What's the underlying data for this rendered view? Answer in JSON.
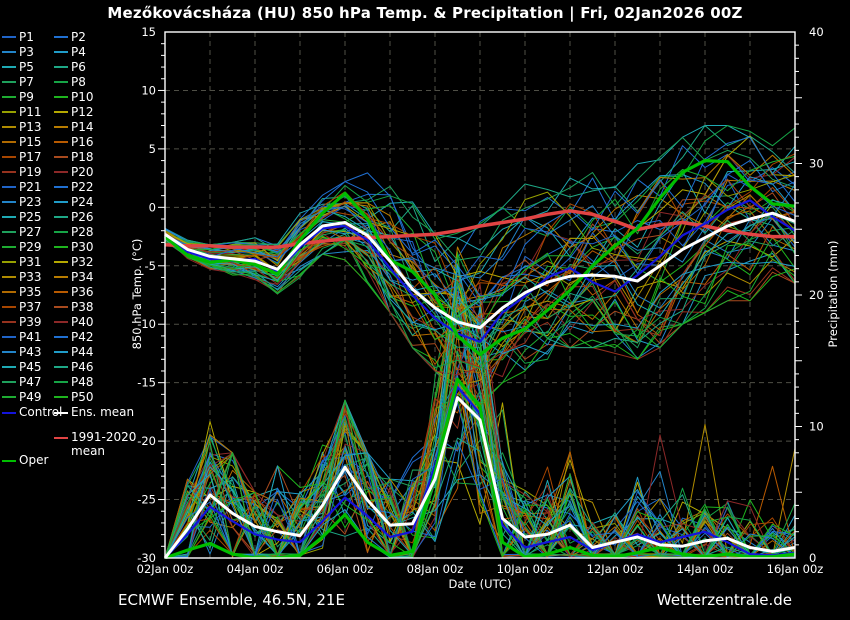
{
  "title": "Mezőkovácsháza  (HU)  850 hPa Temp. & Precipitation | Fri, 02Jan2026 00Z",
  "footer": {
    "left": "ECMWF Ensemble, 46.5N, 21E",
    "right": "Wetterzentrale.de"
  },
  "legend": {
    "members": [
      "P1",
      "P2",
      "P3",
      "P4",
      "P5",
      "P6",
      "P7",
      "P8",
      "P9",
      "P10",
      "P11",
      "P12",
      "P13",
      "P14",
      "P15",
      "P16",
      "P17",
      "P18",
      "P19",
      "P20",
      "P21",
      "P22",
      "P23",
      "P24",
      "P25",
      "P26",
      "P27",
      "P28",
      "P29",
      "P30",
      "P31",
      "P32",
      "P33",
      "P34",
      "P35",
      "P36",
      "P37",
      "P38",
      "P39",
      "P40",
      "P41",
      "P42",
      "P43",
      "P44",
      "P45",
      "P46",
      "P47",
      "P48",
      "P49",
      "P50"
    ],
    "control_label": "Control",
    "ens_mean_label": "Ens. mean",
    "clim_label_line1": "1991-2020",
    "clim_label_line2": "mean",
    "oper_label": "Oper"
  },
  "chart_data": {
    "type": "line",
    "title": "Mezőkovácsháza (HU) 850 hPa Temp. & Precipitation | Fri, 02Jan2026 00Z",
    "xlabel": "Date (UTC)",
    "ylabel_left": "850 hPa Temp. (°C)",
    "ylabel_right": "Precipitation (mm)",
    "x_tick_labels": [
      "02Jan 00z",
      "04Jan 00z",
      "06Jan 00z",
      "08Jan 00z",
      "10Jan 00z",
      "12Jan 00z",
      "14Jan 00z",
      "16Jan 00z"
    ],
    "x_tick_days": [
      0,
      2,
      4,
      6,
      8,
      10,
      12,
      14
    ],
    "y_left_ticks": [
      15,
      10,
      5,
      0,
      -5,
      -10,
      -15,
      -20,
      -25,
      -30
    ],
    "y_right_ticks": [
      40,
      30,
      20,
      10,
      0
    ],
    "y_left_range": [
      -30,
      15
    ],
    "y_right_range": [
      0,
      40
    ],
    "x_range_days": [
      0,
      14
    ],
    "day_step": 0.5,
    "grid": "dashed",
    "legend_position": "left",
    "num_members": 50,
    "member_palette": [
      "#2064c8",
      "#2070d2",
      "#2284c8",
      "#209cc8",
      "#1eaab4",
      "#1ea886",
      "#1ea05c",
      "#16a446",
      "#1eac32",
      "#1eb41e",
      "#96a000",
      "#b4a800",
      "#b08c00",
      "#b87c00",
      "#b06a00",
      "#b85a00",
      "#a84600",
      "#a84a1e",
      "#96321e",
      "#8c2828"
    ],
    "colors": {
      "control": "#1414dc",
      "ens_mean": "#ffffff",
      "clim_mean": "#e14444",
      "oper": "#00be00",
      "background": "#000000",
      "grid": "#4f4f46",
      "axis": "#ffffff",
      "text": "#ffffff"
    },
    "series": {
      "temp": {
        "ens_mean": [
          -2.3,
          -3.6,
          -4.2,
          -4.4,
          -4.6,
          -5.3,
          -3.2,
          -1.6,
          -1.3,
          -2.4,
          -4.6,
          -7.0,
          -8.6,
          -9.8,
          -10.3,
          -8.6,
          -7.3,
          -6.4,
          -5.9,
          -5.8,
          -5.9,
          -6.3,
          -5.0,
          -3.6,
          -2.6,
          -1.6,
          -1.0,
          -0.5,
          -1.2
        ],
        "oper": [
          -2.5,
          -4.1,
          -4.7,
          -4.5,
          -4.9,
          -5.7,
          -2.8,
          -0.5,
          1.2,
          -1.0,
          -4.5,
          -5.5,
          -7.5,
          -11.0,
          -12.6,
          -11.2,
          -10.4,
          -8.8,
          -7.1,
          -5.0,
          -3.3,
          -1.8,
          0.8,
          3.0,
          4.0,
          3.9,
          1.8,
          0.3,
          0.1
        ],
        "control": [
          -2.4,
          -3.8,
          -4.4,
          -4.6,
          -4.4,
          -5.5,
          -3.4,
          -1.8,
          -1.6,
          -2.8,
          -5.2,
          -7.5,
          -9.5,
          -10.8,
          -11.5,
          -9.0,
          -7.6,
          -6.0,
          -5.2,
          -6.4,
          -7.2,
          -5.8,
          -4.2,
          -2.4,
          -1.4,
          -0.2,
          0.6,
          -0.8,
          -2.0
        ],
        "clim_mean_1991_2020": [
          -3.2,
          -3.3,
          -3.3,
          -3.4,
          -3.4,
          -3.4,
          -3.1,
          -2.9,
          -2.7,
          -2.6,
          -2.5,
          -2.4,
          -2.3,
          -2.0,
          -1.6,
          -1.3,
          -1.0,
          -0.6,
          -0.3,
          -0.6,
          -1.2,
          -1.9,
          -1.5,
          -1.3,
          -1.6,
          -2.0,
          -2.3,
          -2.5,
          -2.5
        ],
        "envelope_min": [
          -2.9,
          -4.6,
          -5.5,
          -5.8,
          -6.2,
          -7.5,
          -6.0,
          -4.0,
          -4.5,
          -6.5,
          -9.0,
          -12.0,
          -14.0,
          -16.0,
          -17.0,
          -15.0,
          -14.0,
          -13.0,
          -12.0,
          -12.0,
          -12.5,
          -13.0,
          -12.0,
          -10.0,
          -9.0,
          -8.0,
          -8.0,
          -7.0,
          -6.5
        ],
        "envelope_max": [
          -1.8,
          -2.8,
          -3.2,
          -3.0,
          -2.6,
          -3.0,
          -0.5,
          1.5,
          2.2,
          3.0,
          5.0,
          4.0,
          0.5,
          -1.5,
          -1.0,
          0.0,
          2.0,
          2.5,
          3.0,
          4.0,
          4.0,
          4.5,
          5.0,
          6.0,
          7.0,
          7.0,
          6.5,
          6.0,
          7.0
        ]
      },
      "precip": {
        "ens_mean": [
          0,
          2.2,
          4.8,
          3.4,
          2.4,
          2.0,
          1.7,
          4.0,
          6.9,
          4.4,
          2.5,
          2.6,
          6.0,
          12.2,
          10.5,
          3.0,
          1.6,
          1.8,
          2.5,
          0.8,
          1.2,
          1.6,
          1.0,
          0.9,
          1.3,
          1.5,
          0.8,
          0.5,
          0.8
        ],
        "control": [
          0,
          1.8,
          3.9,
          2.8,
          1.8,
          1.4,
          1.2,
          2.8,
          4.6,
          3.2,
          1.6,
          2.0,
          7.0,
          13.0,
          11.0,
          2.5,
          0.8,
          1.2,
          1.6,
          0.6,
          1.2,
          1.8,
          1.2,
          1.6,
          2.0,
          1.2,
          0.3,
          0.2,
          0.4
        ],
        "oper": [
          0,
          0.6,
          1.1,
          0.3,
          0,
          0,
          0.2,
          1.6,
          3.3,
          1.2,
          0.2,
          0.5,
          6.5,
          13.6,
          11.5,
          1.2,
          0.1,
          0.3,
          0.8,
          0.2,
          0.1,
          0.4,
          0.8,
          0.3,
          0.1,
          0.3,
          0.1,
          0.1,
          0.3
        ],
        "envelope_max": [
          0.5,
          6,
          13,
          8,
          5,
          7,
          13,
          9,
          12,
          8,
          6,
          8,
          18,
          27,
          22,
          12,
          8,
          10,
          12,
          8,
          9,
          10,
          12,
          10,
          12,
          14,
          10,
          12,
          16
        ]
      }
    }
  }
}
